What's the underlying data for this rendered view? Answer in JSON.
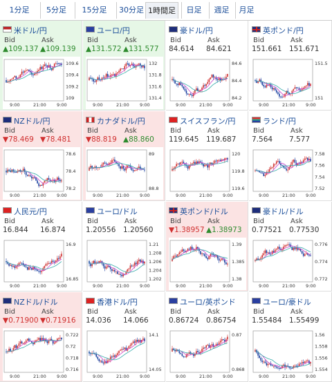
{
  "tabs": [
    {
      "label": "1分足",
      "active": false
    },
    {
      "label": "5分足",
      "active": false
    },
    {
      "label": "15分足",
      "active": false
    },
    {
      "label": "30分足",
      "active": false
    },
    {
      "label": "1時間足",
      "active": true
    },
    {
      "label": "日足",
      "active": false
    },
    {
      "label": "週足",
      "active": false
    },
    {
      "label": "月足",
      "active": false
    }
  ],
  "labels": {
    "bid": "Bid",
    "ask": "Ask"
  },
  "colors": {
    "up": "#2e8b2e",
    "down": "#d03030",
    "cell_up": "#e6f7e6",
    "cell_down": "#fbe3e3",
    "candle_up": "#d03030",
    "candle_down": "#1a3fa0",
    "ma1": "#cc44cc",
    "ma2": "#33aaaa"
  },
  "pairs": [
    {
      "name": "米ドル/円",
      "flag": "us-flag-icon",
      "trend": "up",
      "bid": "▲109.137",
      "ask": "▲109.139",
      "bid_dir": "up",
      "ask_dir": "up",
      "xticks": [
        "9:00",
        "21:00",
        "9:00"
      ],
      "yticks": [
        "109.6",
        "109.4",
        "109.2",
        "109"
      ]
    },
    {
      "name": "ユーロ/円",
      "flag": "eu-flag-icon",
      "trend": "up",
      "bid": "▲131.572",
      "ask": "▲131.577",
      "bid_dir": "up",
      "ask_dir": "up",
      "xticks": [
        "9:00",
        "21:00",
        "9:00"
      ],
      "yticks": [
        "132",
        "131.8",
        "131.6",
        "131.4"
      ]
    },
    {
      "name": "豪ドル/円",
      "flag": "au-flag-icon",
      "trend": "flat",
      "bid": "84.614",
      "ask": "84.621",
      "bid_dir": "flat",
      "ask_dir": "flat",
      "xticks": [
        "9:00",
        "21:00",
        "9:00"
      ],
      "yticks": [
        "84.6",
        "84.4",
        "84.2"
      ]
    },
    {
      "name": "英ポンド/円",
      "flag": "uk-flag-icon",
      "trend": "flat",
      "bid": "151.661",
      "ask": "151.671",
      "bid_dir": "flat",
      "ask_dir": "flat",
      "xticks": [
        "9:00",
        "21:00",
        "9:00"
      ],
      "yticks": [
        "151.5",
        "151"
      ]
    },
    {
      "name": "NZドル/円",
      "flag": "nz-flag-icon",
      "trend": "down",
      "bid": "▼78.469",
      "ask": "▼78.481",
      "bid_dir": "down",
      "ask_dir": "down",
      "xticks": [
        "9:00",
        "21:00",
        "9:00"
      ],
      "yticks": [
        "78.6",
        "78.4",
        "78.2"
      ]
    },
    {
      "name": "カナダドル/円",
      "flag": "ca-flag-icon",
      "trend": "down",
      "bid": "▼88.819",
      "ask": "▲88.860",
      "bid_dir": "down",
      "ask_dir": "up",
      "xticks": [
        "9:00",
        "21:00",
        "9:00"
      ],
      "yticks": [
        "89",
        "88.8"
      ]
    },
    {
      "name": "スイスフラン/円",
      "flag": "ch-flag-icon",
      "trend": "flat",
      "bid": "119.645",
      "ask": "119.687",
      "bid_dir": "flat",
      "ask_dir": "flat",
      "xticks": [
        "9:00",
        "21:00",
        "9:00"
      ],
      "yticks": [
        "120",
        "119.8",
        "119.6"
      ]
    },
    {
      "name": "ランド/円",
      "flag": "za-flag-icon",
      "trend": "flat",
      "bid": "7.564",
      "ask": "7.577",
      "bid_dir": "flat",
      "ask_dir": "flat",
      "xticks": [
        "9:00",
        "21:00",
        "9:00"
      ],
      "yticks": [
        "7.58",
        "7.56",
        "7.54",
        "7.52"
      ]
    },
    {
      "name": "人民元/円",
      "flag": "cn-flag-icon",
      "trend": "flat",
      "bid": "16.844",
      "ask": "16.874",
      "bid_dir": "flat",
      "ask_dir": "flat",
      "xticks": [
        "9:00",
        "21:00",
        "9:00"
      ],
      "yticks": [
        "16.9",
        "16.85"
      ]
    },
    {
      "name": "ユーロ/ドル",
      "flag": "eu-flag-icon",
      "trend": "flat",
      "bid": "1.20556",
      "ask": "1.20560",
      "bid_dir": "flat",
      "ask_dir": "flat",
      "xticks": [
        "9:00",
        "21:00",
        "9:00"
      ],
      "yticks": [
        "1.21",
        "1.208",
        "1.206",
        "1.204",
        "1.202"
      ]
    },
    {
      "name": "英ポンド/ドル",
      "flag": "uk-flag-icon",
      "trend": "down",
      "bid": "▼1.38957",
      "ask": "▲1.38973",
      "bid_dir": "down",
      "ask_dir": "up",
      "xticks": [
        "9:00",
        "21:00",
        "9:00"
      ],
      "yticks": [
        "1.39",
        "1.385",
        "1.38"
      ]
    },
    {
      "name": "豪ドル/ドル",
      "flag": "au-flag-icon",
      "trend": "flat",
      "bid": "0.77521",
      "ask": "0.77530",
      "bid_dir": "flat",
      "ask_dir": "flat",
      "xticks": [
        "9:00",
        "21:00",
        "9:00"
      ],
      "yticks": [
        "0.776",
        "0.774",
        "0.772"
      ]
    },
    {
      "name": "NZドル/ドル",
      "flag": "nz-flag-icon",
      "trend": "down",
      "bid": "▼0.71900",
      "ask": "▼0.71916",
      "bid_dir": "down",
      "ask_dir": "down",
      "xticks": [
        "9:00",
        "21:00",
        "9:00"
      ],
      "yticks": [
        "0.722",
        "0.72",
        "0.718",
        "0.716"
      ]
    },
    {
      "name": "香港ドル/円",
      "flag": "hk-flag-icon",
      "trend": "flat",
      "bid": "14.036",
      "ask": "14.066",
      "bid_dir": "flat",
      "ask_dir": "flat",
      "xticks": [
        "9:00",
        "21:00",
        "9:00"
      ],
      "yticks": [
        "14.1",
        "14.05"
      ]
    },
    {
      "name": "ユーロ/英ポンド",
      "flag": "eu-flag-icon",
      "trend": "flat",
      "bid": "0.86724",
      "ask": "0.86754",
      "bid_dir": "flat",
      "ask_dir": "flat",
      "xticks": [
        "9:00",
        "21:00",
        "9:00"
      ],
      "yticks": [
        "0.87",
        "0.868"
      ]
    },
    {
      "name": "ユーロ/豪ドル",
      "flag": "eu-flag-icon",
      "trend": "flat",
      "bid": "1.55484",
      "ask": "1.55499",
      "bid_dir": "flat",
      "ask_dir": "flat",
      "xticks": [
        "9:00",
        "21:00",
        "9:00"
      ],
      "yticks": [
        "1.56",
        "1.558",
        "1.556",
        "1.554"
      ]
    }
  ]
}
